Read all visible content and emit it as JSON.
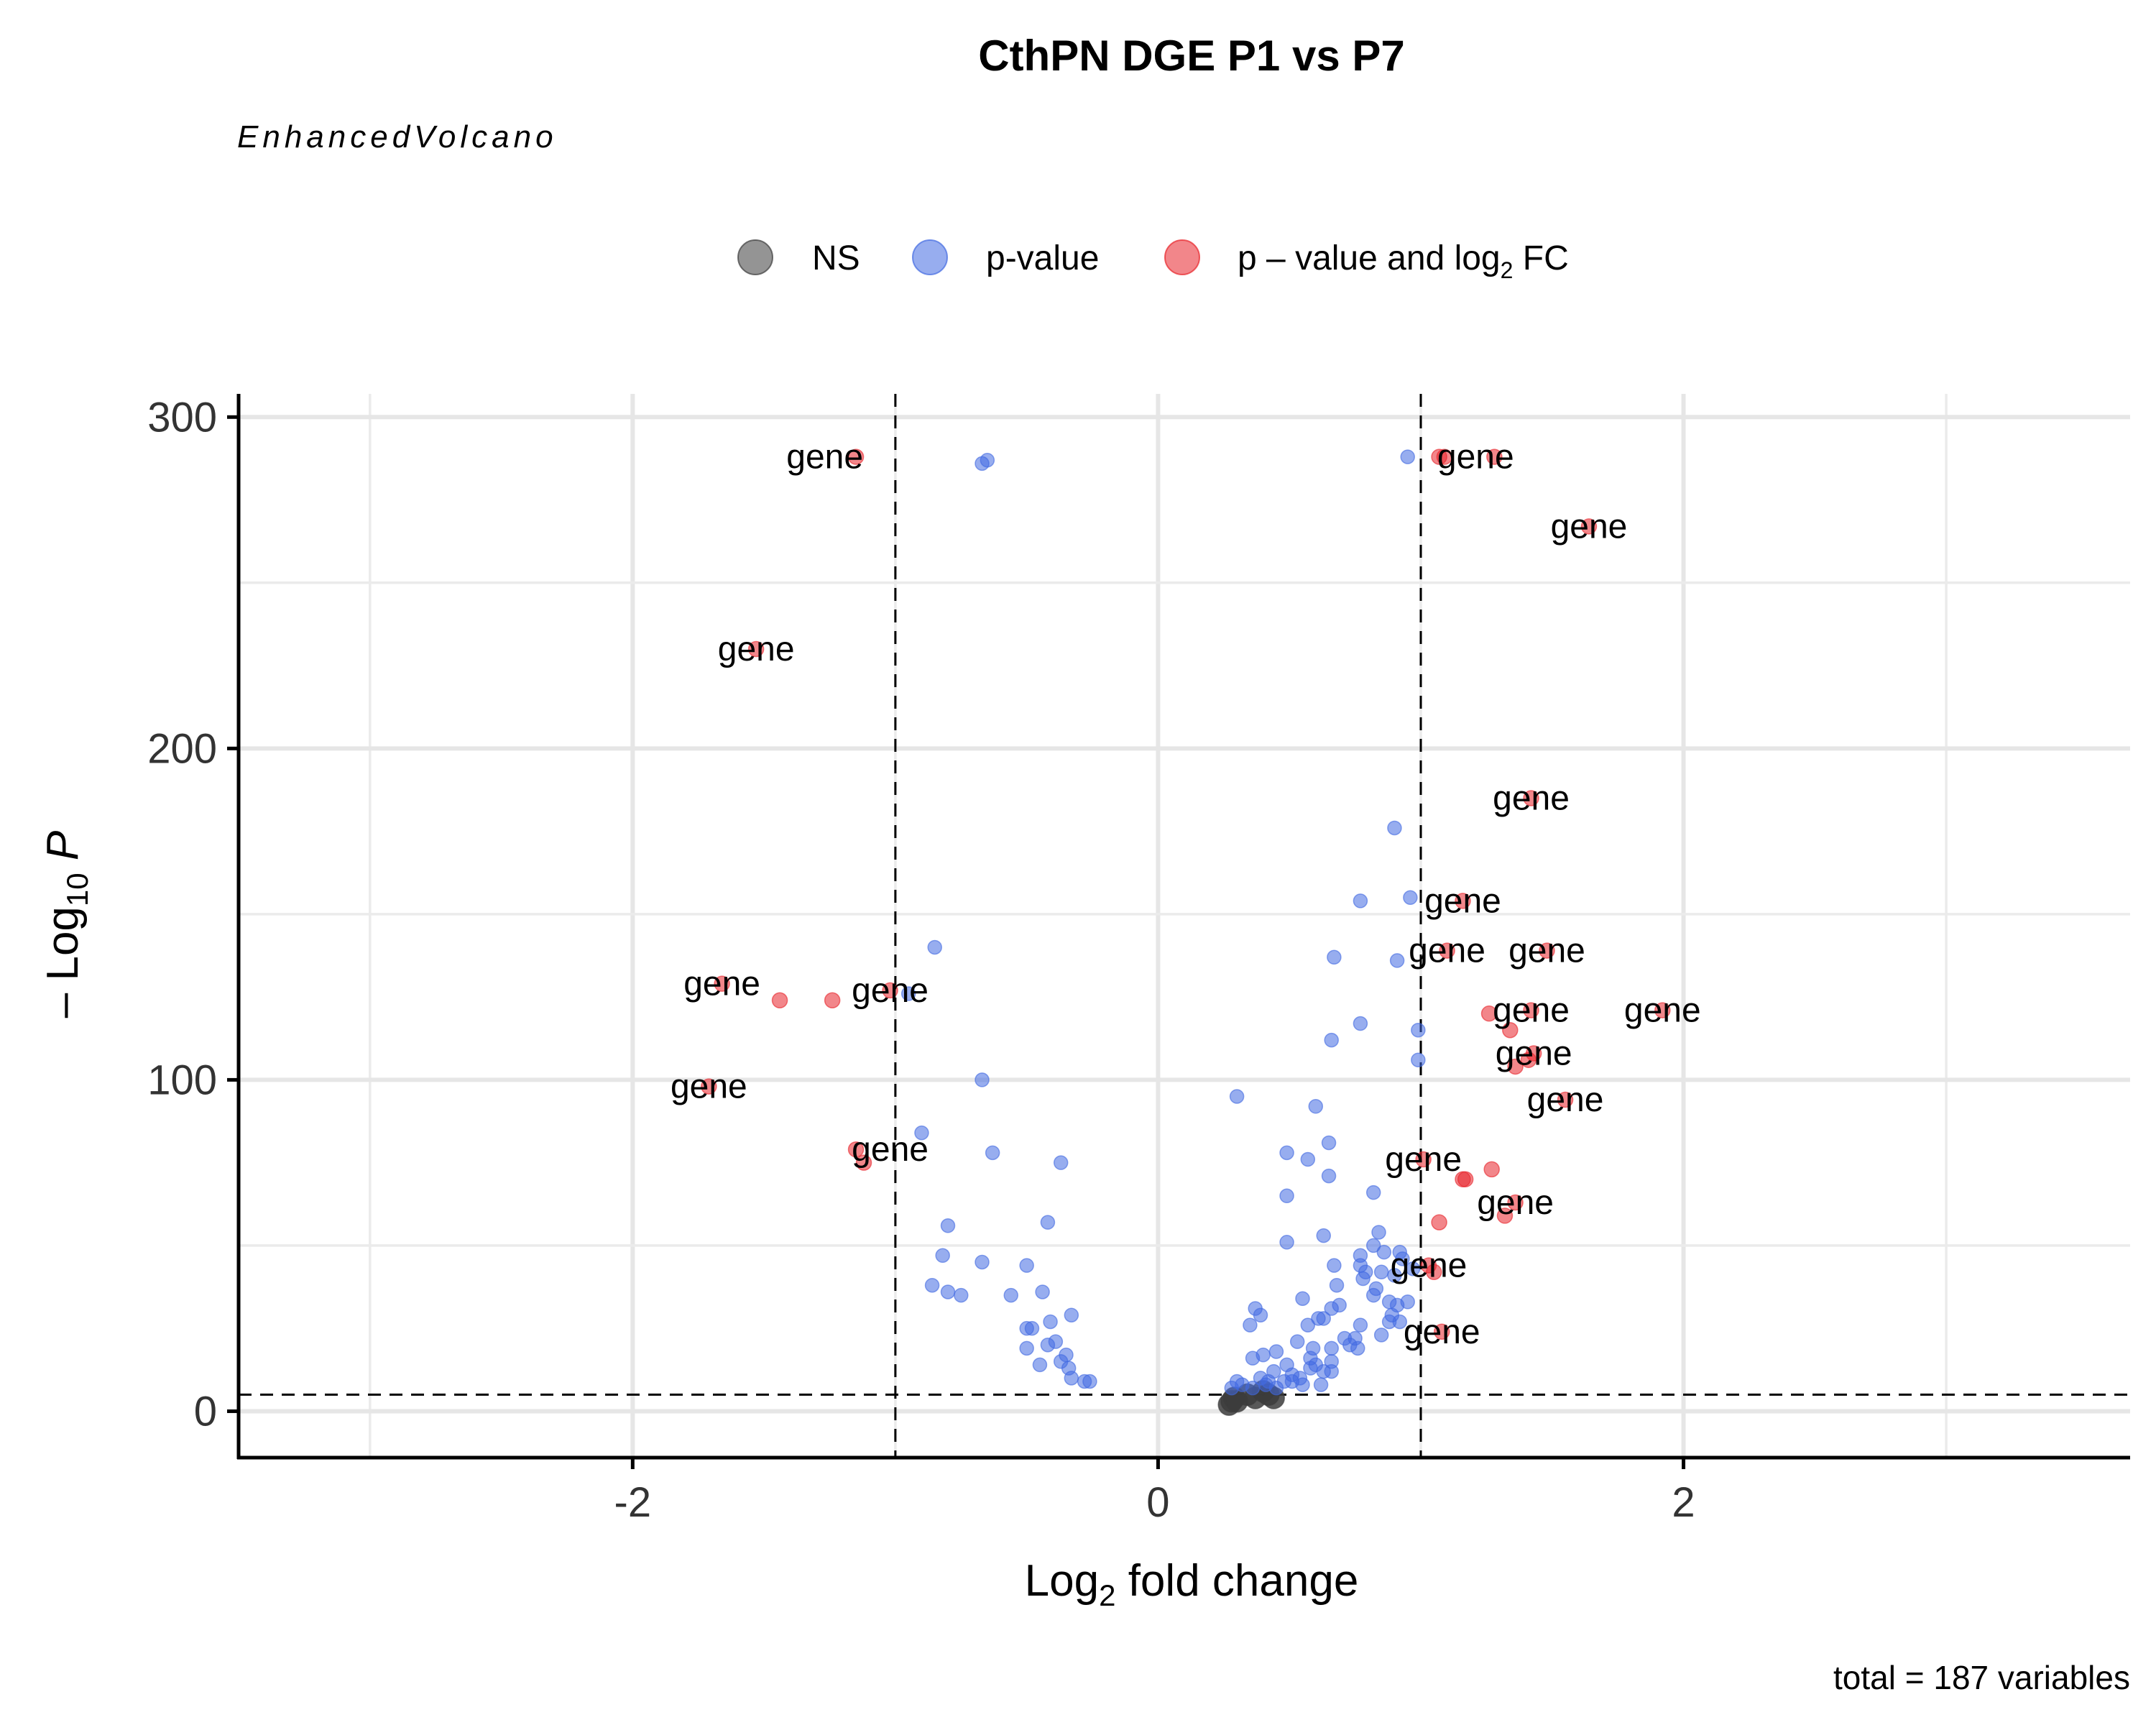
{
  "chart_data": {
    "type": "scatter",
    "title": "CthPN DGE P1 vs P7",
    "subtitle": "EnhancedVolcano",
    "caption": "total = 187 variables",
    "xlabel": {
      "main": "Log",
      "sub": "2",
      "rest": " fold change"
    },
    "ylabel": {
      "pre": "– Log",
      "sub": "10",
      "post": "P"
    },
    "xlim": [
      -3.5,
      3.7
    ],
    "ylim": [
      -14,
      307
    ],
    "x_ticks": [
      -2,
      0,
      2
    ],
    "y_ticks": [
      0,
      100,
      200,
      300
    ],
    "x_grid": [
      -3,
      -2,
      -1,
      0,
      1,
      2,
      3
    ],
    "y_grid": [
      0,
      50,
      100,
      150,
      200,
      250,
      300
    ],
    "cutoffs": {
      "log2fc": [
        -1,
        1
      ],
      "neg_log10_p": 5
    },
    "grid": true,
    "legend": {
      "position": "top",
      "entries": [
        {
          "key": "ns",
          "label": "NS"
        },
        {
          "key": "p",
          "label": "p-value"
        },
        {
          "key": "both",
          "label_pre": "p – value and log",
          "label_sub": "2",
          "label_post": " FC"
        }
      ]
    },
    "colors": {
      "ns": "#3c3c3c",
      "p": "#4169e1",
      "both": "#e8232a"
    },
    "series": [
      {
        "key": "ns",
        "points": [
          [
            0.27,
            2
          ],
          [
            0.28,
            3
          ],
          [
            0.29,
            4
          ],
          [
            0.3,
            3
          ],
          [
            0.34,
            5
          ],
          [
            0.37,
            4
          ],
          [
            0.4,
            6
          ],
          [
            0.42,
            5
          ],
          [
            0.44,
            4
          ]
        ]
      },
      {
        "key": "p",
        "points": [
          [
            -0.65,
            287
          ],
          [
            -0.67,
            286
          ],
          [
            -0.85,
            140
          ],
          [
            -0.95,
            126
          ],
          [
            -0.67,
            100
          ],
          [
            -0.9,
            84
          ],
          [
            -0.63,
            78
          ],
          [
            -0.37,
            75
          ],
          [
            -0.42,
            57
          ],
          [
            -0.8,
            56
          ],
          [
            -0.82,
            47
          ],
          [
            -0.67,
            45
          ],
          [
            -0.5,
            44
          ],
          [
            -0.86,
            38
          ],
          [
            -0.8,
            36
          ],
          [
            -0.75,
            35
          ],
          [
            -0.56,
            35
          ],
          [
            -0.44,
            36
          ],
          [
            -0.33,
            29
          ],
          [
            -0.41,
            27
          ],
          [
            -0.5,
            25
          ],
          [
            -0.48,
            25
          ],
          [
            -0.39,
            21
          ],
          [
            -0.42,
            20
          ],
          [
            -0.35,
            17
          ],
          [
            -0.5,
            19
          ],
          [
            -0.37,
            15
          ],
          [
            -0.34,
            13
          ],
          [
            -0.45,
            14
          ],
          [
            -0.33,
            10
          ],
          [
            -0.28,
            9
          ],
          [
            -0.26,
            9
          ],
          [
            0.95,
            288
          ],
          [
            0.9,
            176
          ],
          [
            0.96,
            155
          ],
          [
            0.77,
            154
          ],
          [
            0.67,
            137
          ],
          [
            0.91,
            136
          ],
          [
            0.99,
            115
          ],
          [
            0.66,
            112
          ],
          [
            0.77,
            117
          ],
          [
            0.99,
            106
          ],
          [
            0.3,
            95
          ],
          [
            0.6,
            92
          ],
          [
            0.65,
            81
          ],
          [
            0.49,
            78
          ],
          [
            0.57,
            76
          ],
          [
            0.65,
            71
          ],
          [
            0.49,
            65
          ],
          [
            0.82,
            66
          ],
          [
            0.84,
            54
          ],
          [
            0.63,
            53
          ],
          [
            0.49,
            51
          ],
          [
            0.82,
            50
          ],
          [
            0.86,
            48
          ],
          [
            0.77,
            47
          ],
          [
            0.92,
            48
          ],
          [
            0.93,
            46
          ],
          [
            0.67,
            44
          ],
          [
            0.77,
            44
          ],
          [
            0.79,
            42
          ],
          [
            0.85,
            42
          ],
          [
            0.9,
            41
          ],
          [
            0.97,
            43
          ],
          [
            0.78,
            40
          ],
          [
            0.68,
            38
          ],
          [
            0.83,
            37
          ],
          [
            0.82,
            35
          ],
          [
            0.88,
            33
          ],
          [
            0.91,
            32
          ],
          [
            0.95,
            33
          ],
          [
            0.55,
            34
          ],
          [
            0.69,
            32
          ],
          [
            0.66,
            31
          ],
          [
            0.37,
            31
          ],
          [
            0.39,
            29
          ],
          [
            0.35,
            26
          ],
          [
            0.61,
            28
          ],
          [
            0.63,
            28
          ],
          [
            0.57,
            26
          ],
          [
            0.89,
            29
          ],
          [
            0.92,
            27
          ],
          [
            0.88,
            27
          ],
          [
            0.77,
            26
          ],
          [
            0.85,
            23
          ],
          [
            0.71,
            22
          ],
          [
            0.75,
            22
          ],
          [
            0.53,
            21
          ],
          [
            0.59,
            19
          ],
          [
            0.66,
            19
          ],
          [
            0.73,
            20
          ],
          [
            0.76,
            19
          ],
          [
            0.45,
            18
          ],
          [
            0.4,
            17
          ],
          [
            0.36,
            16
          ],
          [
            0.58,
            16
          ],
          [
            0.6,
            14
          ],
          [
            0.66,
            15
          ],
          [
            0.49,
            14
          ],
          [
            0.44,
            12
          ],
          [
            0.51,
            11
          ],
          [
            0.54,
            10
          ],
          [
            0.55,
            8
          ],
          [
            0.62,
            8
          ],
          [
            0.48,
            9
          ],
          [
            0.51,
            9
          ],
          [
            0.39,
            10
          ],
          [
            0.45,
            7
          ],
          [
            0.41,
            8
          ],
          [
            0.36,
            7
          ],
          [
            0.3,
            9
          ],
          [
            0.32,
            8
          ],
          [
            0.28,
            7
          ],
          [
            0.42,
            9
          ],
          [
            0.66,
            12
          ],
          [
            0.58,
            13
          ],
          [
            0.63,
            12
          ]
        ]
      },
      {
        "key": "both",
        "points": [
          [
            -1.15,
            288
          ],
          [
            -1.53,
            230
          ],
          [
            -1.66,
            129
          ],
          [
            -1.44,
            124
          ],
          [
            -1.24,
            124
          ],
          [
            -1.02,
            127
          ],
          [
            -1.71,
            98
          ],
          [
            -1.15,
            79
          ],
          [
            -1.12,
            75
          ],
          [
            1.07,
            288
          ],
          [
            1.09,
            288
          ],
          [
            1.28,
            288
          ],
          [
            1.64,
            267
          ],
          [
            1.42,
            185
          ],
          [
            1.16,
            154
          ],
          [
            1.1,
            139
          ],
          [
            1.48,
            139
          ],
          [
            1.92,
            121
          ],
          [
            1.42,
            121
          ],
          [
            1.26,
            120
          ],
          [
            1.34,
            115
          ],
          [
            1.43,
            108
          ],
          [
            1.41,
            106
          ],
          [
            1.36,
            104
          ],
          [
            1.55,
            94
          ],
          [
            1.01,
            76
          ],
          [
            1.27,
            73
          ],
          [
            1.16,
            70
          ],
          [
            1.17,
            70
          ],
          [
            1.36,
            63
          ],
          [
            1.32,
            59
          ],
          [
            1.07,
            57
          ],
          [
            1.03,
            44
          ],
          [
            1.05,
            42
          ],
          [
            1.08,
            24
          ]
        ]
      }
    ],
    "point_labels": [
      {
        "text": "gene",
        "x": -1.15,
        "y": 288,
        "align": "end"
      },
      {
        "text": "gene",
        "x": 1.09,
        "y": 288,
        "align": "start"
      },
      {
        "text": "gene",
        "x": 1.64,
        "y": 267,
        "align": "middle"
      },
      {
        "text": "gene",
        "x": -1.53,
        "y": 230,
        "align": "middle"
      },
      {
        "text": "gene",
        "x": 1.42,
        "y": 185,
        "align": "middle"
      },
      {
        "text": "gene",
        "x": 1.16,
        "y": 154,
        "align": "middle"
      },
      {
        "text": "gene",
        "x": 1.1,
        "y": 139,
        "align": "middle"
      },
      {
        "text": "gene",
        "x": 1.48,
        "y": 139,
        "align": "middle"
      },
      {
        "text": "gene",
        "x": -1.66,
        "y": 129,
        "align": "middle"
      },
      {
        "text": "gene",
        "x": -1.02,
        "y": 127,
        "align": "middle"
      },
      {
        "text": "gene",
        "x": 1.42,
        "y": 121,
        "align": "middle"
      },
      {
        "text": "gene",
        "x": 1.92,
        "y": 121,
        "align": "middle"
      },
      {
        "text": "gene",
        "x": 1.43,
        "y": 108,
        "align": "middle"
      },
      {
        "text": "gene",
        "x": -1.71,
        "y": 98,
        "align": "middle"
      },
      {
        "text": "gene",
        "x": 1.55,
        "y": 94,
        "align": "middle"
      },
      {
        "text": "gene",
        "x": -1.02,
        "y": 79,
        "align": "middle"
      },
      {
        "text": "gene",
        "x": 1.01,
        "y": 76,
        "align": "middle"
      },
      {
        "text": "gene",
        "x": 1.36,
        "y": 63,
        "align": "middle"
      },
      {
        "text": "gene",
        "x": 1.03,
        "y": 44,
        "align": "middle"
      },
      {
        "text": "gene",
        "x": 1.08,
        "y": 24,
        "align": "middle"
      }
    ]
  }
}
